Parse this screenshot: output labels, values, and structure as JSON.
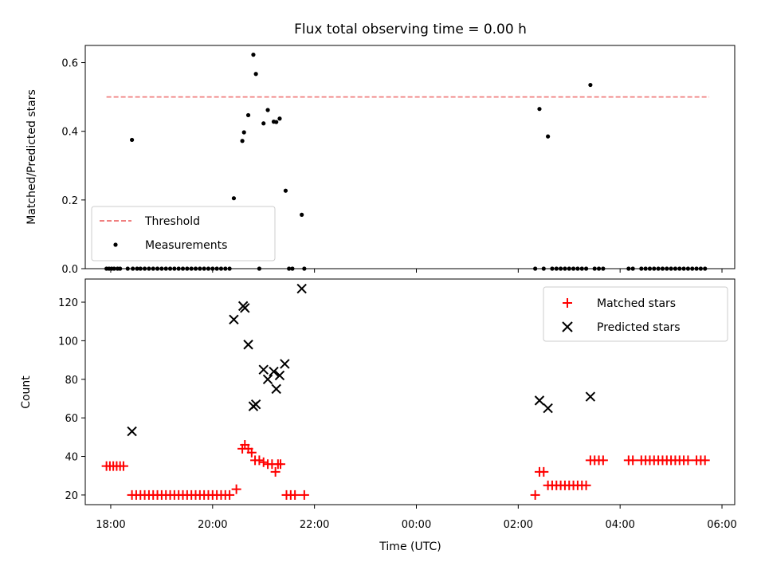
{
  "chart_data": [
    {
      "type": "scatter",
      "title": "Flux total observing time = 0.00 h",
      "xlabel": "",
      "ylabel": "Matched/Predicted stars",
      "xlim": [
        "17:30",
        "06:15"
      ],
      "ylim": [
        0,
        0.65
      ],
      "yticks": [
        0.0,
        0.2,
        0.4,
        0.6
      ],
      "ytick_labels": [
        "0.0",
        "0.2",
        "0.4",
        "0.6"
      ],
      "xticks": [
        "18:00",
        "20:00",
        "22:00",
        "00:00",
        "02:00",
        "04:00",
        "06:00"
      ],
      "legend_position": "lower-left",
      "threshold": {
        "name": "Threshold",
        "value": 0.5,
        "x_start": "17:55",
        "x_end": "05:45",
        "color": "#f08080"
      },
      "measurements": {
        "name": "Measurements",
        "color": "#000000",
        "points": [
          [
            "18:25",
            0.375
          ],
          [
            "20:25",
            0.205
          ],
          [
            "20:35",
            0.372
          ],
          [
            "20:37",
            0.397
          ],
          [
            "20:42",
            0.447
          ],
          [
            "20:48",
            0.623
          ],
          [
            "20:51",
            0.567
          ],
          [
            "21:00",
            0.423
          ],
          [
            "21:05",
            0.462
          ],
          [
            "21:12",
            0.428
          ],
          [
            "21:15",
            0.427
          ],
          [
            "21:19",
            0.437
          ],
          [
            "21:26",
            0.227
          ],
          [
            "21:45",
            0.157
          ],
          [
            "02:25",
            0.465
          ],
          [
            "02:35",
            0.385
          ],
          [
            "03:25",
            0.535
          ],
          [
            "17:55",
            0
          ],
          [
            "17:58",
            0
          ],
          [
            "18:01",
            0
          ],
          [
            "18:04",
            0
          ],
          [
            "18:08",
            0
          ],
          [
            "18:11",
            0
          ],
          [
            "18:20",
            0
          ],
          [
            "18:26",
            0
          ],
          [
            "18:31",
            0
          ],
          [
            "18:35",
            0
          ],
          [
            "18:40",
            0
          ],
          [
            "18:45",
            0
          ],
          [
            "18:50",
            0
          ],
          [
            "18:55",
            0
          ],
          [
            "19:00",
            0
          ],
          [
            "19:05",
            0
          ],
          [
            "19:10",
            0
          ],
          [
            "19:15",
            0
          ],
          [
            "19:20",
            0
          ],
          [
            "19:25",
            0
          ],
          [
            "19:30",
            0
          ],
          [
            "19:35",
            0
          ],
          [
            "19:40",
            0
          ],
          [
            "19:45",
            0
          ],
          [
            "19:50",
            0
          ],
          [
            "19:55",
            0
          ],
          [
            "20:00",
            0
          ],
          [
            "20:05",
            0
          ],
          [
            "20:10",
            0
          ],
          [
            "20:15",
            0
          ],
          [
            "20:20",
            0
          ],
          [
            "20:55",
            0
          ],
          [
            "21:30",
            0
          ],
          [
            "21:34",
            0
          ],
          [
            "21:48",
            0
          ],
          [
            "02:20",
            0
          ],
          [
            "02:30",
            0
          ],
          [
            "02:40",
            0
          ],
          [
            "02:45",
            0
          ],
          [
            "02:50",
            0
          ],
          [
            "02:55",
            0
          ],
          [
            "03:00",
            0
          ],
          [
            "03:05",
            0
          ],
          [
            "03:10",
            0
          ],
          [
            "03:15",
            0
          ],
          [
            "03:20",
            0
          ],
          [
            "03:30",
            0
          ],
          [
            "03:35",
            0
          ],
          [
            "03:40",
            0
          ],
          [
            "04:10",
            0
          ],
          [
            "04:15",
            0
          ],
          [
            "04:25",
            0
          ],
          [
            "04:30",
            0
          ],
          [
            "04:35",
            0
          ],
          [
            "04:40",
            0
          ],
          [
            "04:45",
            0
          ],
          [
            "04:50",
            0
          ],
          [
            "04:55",
            0
          ],
          [
            "05:00",
            0
          ],
          [
            "05:05",
            0
          ],
          [
            "05:10",
            0
          ],
          [
            "05:15",
            0
          ],
          [
            "05:20",
            0
          ],
          [
            "05:25",
            0
          ],
          [
            "05:30",
            0
          ],
          [
            "05:35",
            0
          ],
          [
            "05:40",
            0
          ]
        ]
      }
    },
    {
      "type": "scatter",
      "title": "",
      "xlabel": "Time (UTC)",
      "ylabel": "Count",
      "xlim": [
        "17:30",
        "06:15"
      ],
      "ylim": [
        15,
        132
      ],
      "yticks": [
        20,
        40,
        60,
        80,
        100,
        120
      ],
      "ytick_labels": [
        "20",
        "40",
        "60",
        "80",
        "100",
        "120"
      ],
      "xticks": [
        "18:00",
        "20:00",
        "22:00",
        "00:00",
        "02:00",
        "04:00",
        "06:00"
      ],
      "legend_position": "top-right",
      "series": [
        {
          "name": "Matched stars",
          "marker": "+",
          "color": "#ff0000",
          "points": [
            [
              "17:55",
              35
            ],
            [
              "17:59",
              35
            ],
            [
              "18:03",
              35
            ],
            [
              "18:07",
              35
            ],
            [
              "18:11",
              35
            ],
            [
              "18:15",
              35
            ],
            [
              "18:25",
              20
            ],
            [
              "18:30",
              20
            ],
            [
              "18:35",
              20
            ],
            [
              "18:40",
              20
            ],
            [
              "18:45",
              20
            ],
            [
              "18:50",
              20
            ],
            [
              "18:55",
              20
            ],
            [
              "19:00",
              20
            ],
            [
              "19:05",
              20
            ],
            [
              "19:10",
              20
            ],
            [
              "19:15",
              20
            ],
            [
              "19:20",
              20
            ],
            [
              "19:25",
              20
            ],
            [
              "19:30",
              20
            ],
            [
              "19:35",
              20
            ],
            [
              "19:40",
              20
            ],
            [
              "19:45",
              20
            ],
            [
              "19:50",
              20
            ],
            [
              "19:55",
              20
            ],
            [
              "20:00",
              20
            ],
            [
              "20:05",
              20
            ],
            [
              "20:10",
              20
            ],
            [
              "20:15",
              20
            ],
            [
              "20:20",
              20
            ],
            [
              "20:28",
              23
            ],
            [
              "20:35",
              44
            ],
            [
              "20:38",
              46
            ],
            [
              "20:42",
              44
            ],
            [
              "20:46",
              42
            ],
            [
              "20:50",
              38
            ],
            [
              "20:55",
              38
            ],
            [
              "21:00",
              37
            ],
            [
              "21:05",
              36
            ],
            [
              "21:10",
              36
            ],
            [
              "21:14",
              32
            ],
            [
              "21:17",
              36
            ],
            [
              "21:20",
              36
            ],
            [
              "21:27",
              20
            ],
            [
              "21:32",
              20
            ],
            [
              "21:37",
              20
            ],
            [
              "21:48",
              20
            ],
            [
              "02:20",
              20
            ],
            [
              "02:25",
              32
            ],
            [
              "02:30",
              32
            ],
            [
              "02:35",
              25
            ],
            [
              "02:40",
              25
            ],
            [
              "02:45",
              25
            ],
            [
              "02:50",
              25
            ],
            [
              "02:55",
              25
            ],
            [
              "03:00",
              25
            ],
            [
              "03:05",
              25
            ],
            [
              "03:10",
              25
            ],
            [
              "03:15",
              25
            ],
            [
              "03:20",
              25
            ],
            [
              "03:25",
              38
            ],
            [
              "03:30",
              38
            ],
            [
              "03:35",
              38
            ],
            [
              "03:40",
              38
            ],
            [
              "04:10",
              38
            ],
            [
              "04:15",
              38
            ],
            [
              "04:25",
              38
            ],
            [
              "04:30",
              38
            ],
            [
              "04:35",
              38
            ],
            [
              "04:40",
              38
            ],
            [
              "04:45",
              38
            ],
            [
              "04:50",
              38
            ],
            [
              "04:55",
              38
            ],
            [
              "05:00",
              38
            ],
            [
              "05:05",
              38
            ],
            [
              "05:10",
              38
            ],
            [
              "05:15",
              38
            ],
            [
              "05:20",
              38
            ],
            [
              "05:30",
              38
            ],
            [
              "05:35",
              38
            ],
            [
              "05:40",
              38
            ]
          ]
        },
        {
          "name": "Predicted stars",
          "marker": "x",
          "color": "#000000",
          "points": [
            [
              "18:25",
              53
            ],
            [
              "20:25",
              111
            ],
            [
              "20:36",
              118
            ],
            [
              "20:38",
              117
            ],
            [
              "20:42",
              98
            ],
            [
              "20:48",
              66
            ],
            [
              "20:51",
              67
            ],
            [
              "21:00",
              85
            ],
            [
              "21:05",
              80
            ],
            [
              "21:12",
              84
            ],
            [
              "21:15",
              75
            ],
            [
              "21:19",
              82
            ],
            [
              "21:25",
              88
            ],
            [
              "21:45",
              127
            ],
            [
              "02:25",
              69
            ],
            [
              "02:35",
              65
            ],
            [
              "03:25",
              71
            ]
          ]
        }
      ]
    }
  ]
}
